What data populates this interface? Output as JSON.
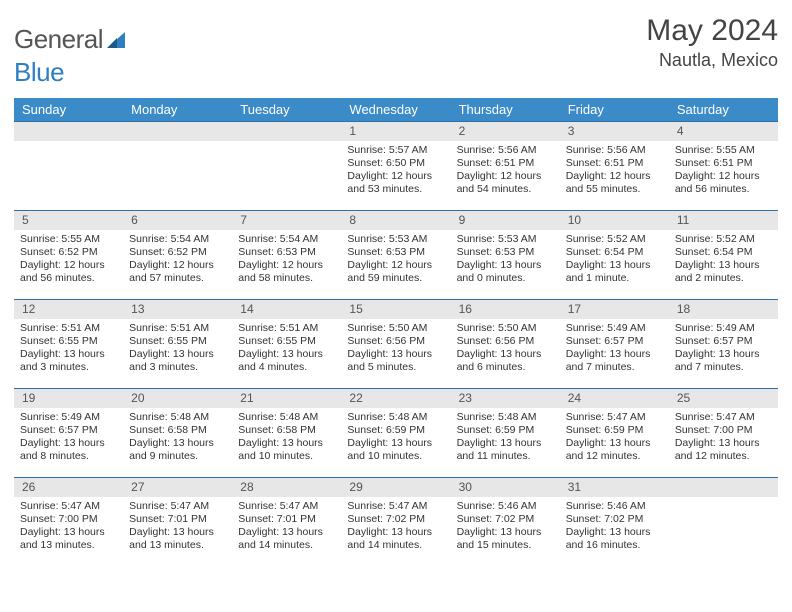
{
  "brand": {
    "general": "General",
    "blue": "Blue"
  },
  "title": "May 2024",
  "location": "Nautla, Mexico",
  "colors": {
    "header_bg": "#3b8bc9",
    "week_divider": "#2d6fa8",
    "daynum_bg": "#e7e7e7",
    "text": "#333333",
    "title_text": "#444444"
  },
  "day_headers": [
    "Sunday",
    "Monday",
    "Tuesday",
    "Wednesday",
    "Thursday",
    "Friday",
    "Saturday"
  ],
  "weeks": [
    [
      {
        "n": "",
        "sr": "",
        "ss": "",
        "dl1": "",
        "dl2": ""
      },
      {
        "n": "",
        "sr": "",
        "ss": "",
        "dl1": "",
        "dl2": ""
      },
      {
        "n": "",
        "sr": "",
        "ss": "",
        "dl1": "",
        "dl2": ""
      },
      {
        "n": "1",
        "sr": "Sunrise: 5:57 AM",
        "ss": "Sunset: 6:50 PM",
        "dl1": "Daylight: 12 hours",
        "dl2": "and 53 minutes."
      },
      {
        "n": "2",
        "sr": "Sunrise: 5:56 AM",
        "ss": "Sunset: 6:51 PM",
        "dl1": "Daylight: 12 hours",
        "dl2": "and 54 minutes."
      },
      {
        "n": "3",
        "sr": "Sunrise: 5:56 AM",
        "ss": "Sunset: 6:51 PM",
        "dl1": "Daylight: 12 hours",
        "dl2": "and 55 minutes."
      },
      {
        "n": "4",
        "sr": "Sunrise: 5:55 AM",
        "ss": "Sunset: 6:51 PM",
        "dl1": "Daylight: 12 hours",
        "dl2": "and 56 minutes."
      }
    ],
    [
      {
        "n": "5",
        "sr": "Sunrise: 5:55 AM",
        "ss": "Sunset: 6:52 PM",
        "dl1": "Daylight: 12 hours",
        "dl2": "and 56 minutes."
      },
      {
        "n": "6",
        "sr": "Sunrise: 5:54 AM",
        "ss": "Sunset: 6:52 PM",
        "dl1": "Daylight: 12 hours",
        "dl2": "and 57 minutes."
      },
      {
        "n": "7",
        "sr": "Sunrise: 5:54 AM",
        "ss": "Sunset: 6:53 PM",
        "dl1": "Daylight: 12 hours",
        "dl2": "and 58 minutes."
      },
      {
        "n": "8",
        "sr": "Sunrise: 5:53 AM",
        "ss": "Sunset: 6:53 PM",
        "dl1": "Daylight: 12 hours",
        "dl2": "and 59 minutes."
      },
      {
        "n": "9",
        "sr": "Sunrise: 5:53 AM",
        "ss": "Sunset: 6:53 PM",
        "dl1": "Daylight: 13 hours",
        "dl2": "and 0 minutes."
      },
      {
        "n": "10",
        "sr": "Sunrise: 5:52 AM",
        "ss": "Sunset: 6:54 PM",
        "dl1": "Daylight: 13 hours",
        "dl2": "and 1 minute."
      },
      {
        "n": "11",
        "sr": "Sunrise: 5:52 AM",
        "ss": "Sunset: 6:54 PM",
        "dl1": "Daylight: 13 hours",
        "dl2": "and 2 minutes."
      }
    ],
    [
      {
        "n": "12",
        "sr": "Sunrise: 5:51 AM",
        "ss": "Sunset: 6:55 PM",
        "dl1": "Daylight: 13 hours",
        "dl2": "and 3 minutes."
      },
      {
        "n": "13",
        "sr": "Sunrise: 5:51 AM",
        "ss": "Sunset: 6:55 PM",
        "dl1": "Daylight: 13 hours",
        "dl2": "and 3 minutes."
      },
      {
        "n": "14",
        "sr": "Sunrise: 5:51 AM",
        "ss": "Sunset: 6:55 PM",
        "dl1": "Daylight: 13 hours",
        "dl2": "and 4 minutes."
      },
      {
        "n": "15",
        "sr": "Sunrise: 5:50 AM",
        "ss": "Sunset: 6:56 PM",
        "dl1": "Daylight: 13 hours",
        "dl2": "and 5 minutes."
      },
      {
        "n": "16",
        "sr": "Sunrise: 5:50 AM",
        "ss": "Sunset: 6:56 PM",
        "dl1": "Daylight: 13 hours",
        "dl2": "and 6 minutes."
      },
      {
        "n": "17",
        "sr": "Sunrise: 5:49 AM",
        "ss": "Sunset: 6:57 PM",
        "dl1": "Daylight: 13 hours",
        "dl2": "and 7 minutes."
      },
      {
        "n": "18",
        "sr": "Sunrise: 5:49 AM",
        "ss": "Sunset: 6:57 PM",
        "dl1": "Daylight: 13 hours",
        "dl2": "and 7 minutes."
      }
    ],
    [
      {
        "n": "19",
        "sr": "Sunrise: 5:49 AM",
        "ss": "Sunset: 6:57 PM",
        "dl1": "Daylight: 13 hours",
        "dl2": "and 8 minutes."
      },
      {
        "n": "20",
        "sr": "Sunrise: 5:48 AM",
        "ss": "Sunset: 6:58 PM",
        "dl1": "Daylight: 13 hours",
        "dl2": "and 9 minutes."
      },
      {
        "n": "21",
        "sr": "Sunrise: 5:48 AM",
        "ss": "Sunset: 6:58 PM",
        "dl1": "Daylight: 13 hours",
        "dl2": "and 10 minutes."
      },
      {
        "n": "22",
        "sr": "Sunrise: 5:48 AM",
        "ss": "Sunset: 6:59 PM",
        "dl1": "Daylight: 13 hours",
        "dl2": "and 10 minutes."
      },
      {
        "n": "23",
        "sr": "Sunrise: 5:48 AM",
        "ss": "Sunset: 6:59 PM",
        "dl1": "Daylight: 13 hours",
        "dl2": "and 11 minutes."
      },
      {
        "n": "24",
        "sr": "Sunrise: 5:47 AM",
        "ss": "Sunset: 6:59 PM",
        "dl1": "Daylight: 13 hours",
        "dl2": "and 12 minutes."
      },
      {
        "n": "25",
        "sr": "Sunrise: 5:47 AM",
        "ss": "Sunset: 7:00 PM",
        "dl1": "Daylight: 13 hours",
        "dl2": "and 12 minutes."
      }
    ],
    [
      {
        "n": "26",
        "sr": "Sunrise: 5:47 AM",
        "ss": "Sunset: 7:00 PM",
        "dl1": "Daylight: 13 hours",
        "dl2": "and 13 minutes."
      },
      {
        "n": "27",
        "sr": "Sunrise: 5:47 AM",
        "ss": "Sunset: 7:01 PM",
        "dl1": "Daylight: 13 hours",
        "dl2": "and 13 minutes."
      },
      {
        "n": "28",
        "sr": "Sunrise: 5:47 AM",
        "ss": "Sunset: 7:01 PM",
        "dl1": "Daylight: 13 hours",
        "dl2": "and 14 minutes."
      },
      {
        "n": "29",
        "sr": "Sunrise: 5:47 AM",
        "ss": "Sunset: 7:02 PM",
        "dl1": "Daylight: 13 hours",
        "dl2": "and 14 minutes."
      },
      {
        "n": "30",
        "sr": "Sunrise: 5:46 AM",
        "ss": "Sunset: 7:02 PM",
        "dl1": "Daylight: 13 hours",
        "dl2": "and 15 minutes."
      },
      {
        "n": "31",
        "sr": "Sunrise: 5:46 AM",
        "ss": "Sunset: 7:02 PM",
        "dl1": "Daylight: 13 hours",
        "dl2": "and 16 minutes."
      },
      {
        "n": "",
        "sr": "",
        "ss": "",
        "dl1": "",
        "dl2": ""
      }
    ]
  ]
}
